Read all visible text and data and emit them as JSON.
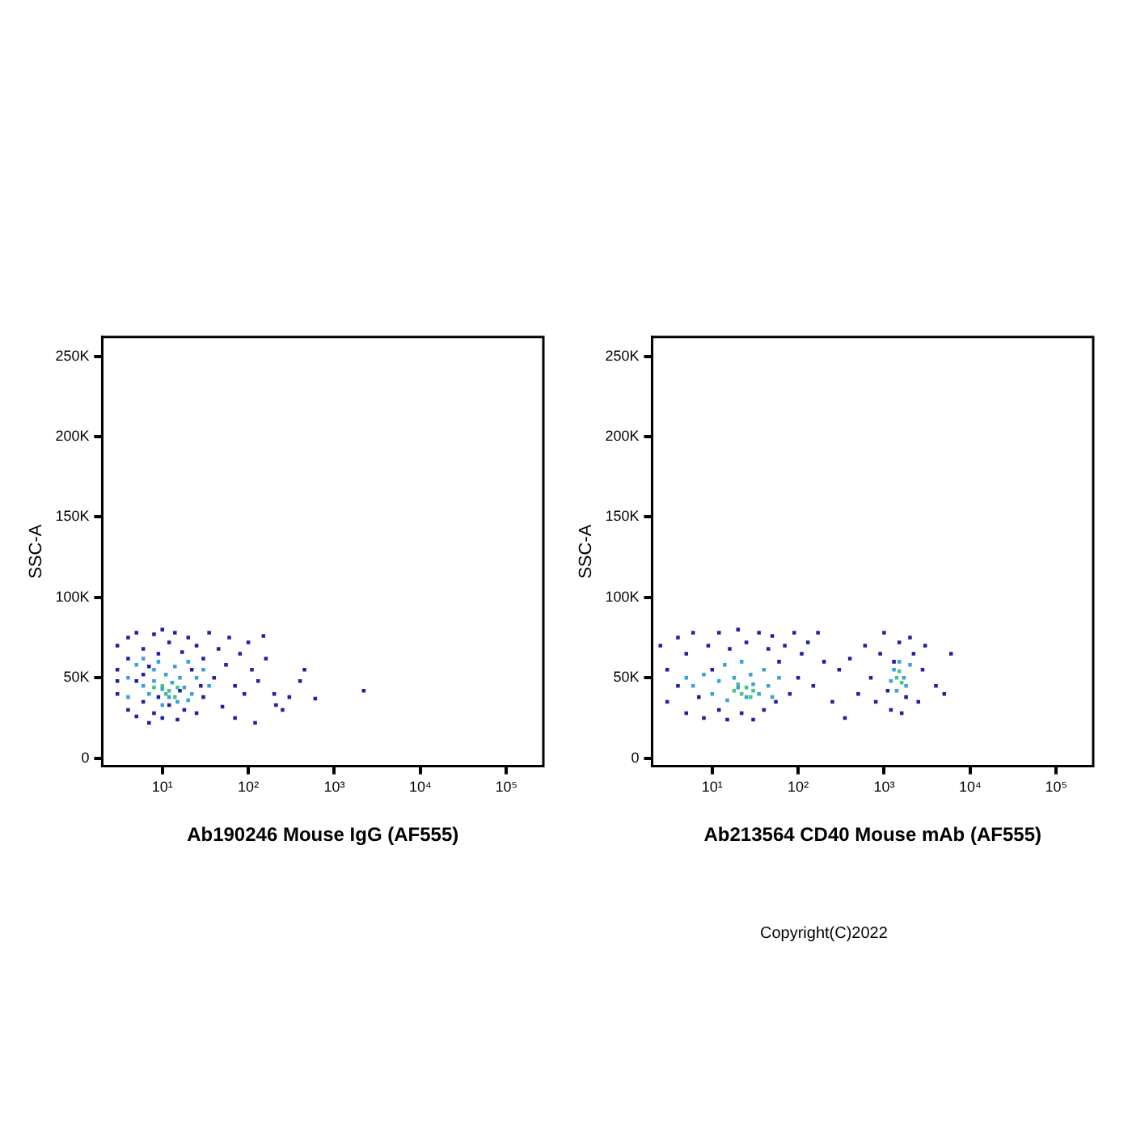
{
  "chart_data": [
    {
      "type": "scatter",
      "xlabel": "Ab190246 Mouse IgG (AF555)",
      "ylabel": "SSC-A",
      "log": "x",
      "grid": false,
      "legend": false,
      "marker": "square",
      "xlim": [
        2,
        270000
      ],
      "xticks": [
        {
          "value": 10,
          "label": "10¹"
        },
        {
          "value": 100,
          "label": "10²"
        },
        {
          "value": 1000,
          "label": "10³"
        },
        {
          "value": 10000,
          "label": "10⁴"
        },
        {
          "value": 100000,
          "label": "10⁵"
        }
      ],
      "ylim": [
        -5000,
        262000
      ],
      "yticks": [
        0,
        {
          "value": 50000,
          "label": "50K"
        },
        {
          "value": 100000,
          "label": "100K"
        },
        {
          "value": 150000,
          "label": "150K"
        },
        {
          "value": 200000,
          "label": "200K"
        },
        {
          "value": 250000,
          "label": "250K"
        }
      ],
      "series": [
        {
          "color": "#2020a0",
          "x": [
            3,
            3,
            3,
            4,
            4,
            4,
            5,
            5,
            5,
            6,
            6,
            7,
            7,
            8,
            8,
            9,
            10,
            10,
            12,
            12,
            14,
            15,
            17,
            18,
            20,
            22,
            25,
            25,
            30,
            30,
            35,
            40,
            45,
            50,
            55,
            60,
            70,
            80,
            90,
            100,
            110,
            130,
            150,
            160,
            200,
            210,
            250,
            300,
            400,
            450,
            600,
            2200,
            3,
            6,
            9,
            16,
            28,
            70,
            120
          ],
          "values": [
            70000,
            55000,
            40000,
            75000,
            30000,
            62000,
            48000,
            26000,
            78000,
            68000,
            35000,
            22000,
            57000,
            77000,
            28000,
            65000,
            80000,
            25000,
            72000,
            33000,
            78000,
            24000,
            66000,
            30000,
            75000,
            55000,
            28000,
            70000,
            62000,
            38000,
            78000,
            50000,
            68000,
            32000,
            58000,
            75000,
            45000,
            65000,
            40000,
            72000,
            55000,
            48000,
            76000,
            62000,
            40000,
            33000,
            30000,
            38000,
            48000,
            55000,
            37000,
            42000,
            48000,
            52000,
            38000,
            42000,
            45000,
            25000,
            22000
          ]
        },
        {
          "color": "#3aa0d8",
          "x": [
            4,
            5,
            6,
            7,
            8,
            8,
            9,
            10,
            11,
            12,
            13,
            14,
            15,
            16,
            18,
            20,
            22,
            25,
            6,
            30,
            35,
            4,
            10,
            20
          ],
          "values": [
            50000,
            58000,
            45000,
            40000,
            55000,
            48000,
            60000,
            43000,
            52000,
            38000,
            47000,
            57000,
            35000,
            50000,
            44000,
            60000,
            40000,
            50000,
            62000,
            55000,
            45000,
            38000,
            33000,
            36000
          ]
        },
        {
          "color": "#40c880",
          "x": [
            10,
            12,
            15,
            11,
            14,
            8
          ],
          "values": [
            45000,
            42000,
            44000,
            40000,
            38000,
            44000
          ]
        }
      ]
    },
    {
      "type": "scatter",
      "xlabel": "Ab213564 CD40 Mouse mAb (AF555)",
      "ylabel": "SSC-A",
      "log": "x",
      "grid": false,
      "legend": false,
      "marker": "square",
      "xlim": [
        2,
        270000
      ],
      "xticks": [
        {
          "value": 10,
          "label": "10¹"
        },
        {
          "value": 100,
          "label": "10²"
        },
        {
          "value": 1000,
          "label": "10³"
        },
        {
          "value": 10000,
          "label": "10⁴"
        },
        {
          "value": 100000,
          "label": "10⁵"
        }
      ],
      "ylim": [
        -5000,
        262000
      ],
      "yticks": [
        0,
        {
          "value": 50000,
          "label": "50K"
        },
        {
          "value": 100000,
          "label": "100K"
        },
        {
          "value": 150000,
          "label": "150K"
        },
        {
          "value": 200000,
          "label": "200K"
        },
        {
          "value": 250000,
          "label": "250K"
        }
      ],
      "annotations": [
        "Copyright(C)2022"
      ],
      "series": [
        {
          "color": "#2020a0",
          "x": [
            2.5,
            3,
            3,
            4,
            4,
            5,
            5,
            6,
            7,
            8,
            9,
            10,
            12,
            12,
            15,
            16,
            20,
            22,
            25,
            30,
            35,
            40,
            45,
            50,
            55,
            60,
            70,
            80,
            90,
            100,
            110,
            130,
            150,
            170,
            200,
            250,
            300,
            350,
            400,
            500,
            600,
            700,
            800,
            900,
            1000,
            1100,
            1200,
            1300,
            1500,
            1600,
            1800,
            2000,
            2200,
            2500,
            2800,
            3000,
            4000,
            5000,
            6000
          ],
          "values": [
            70000,
            55000,
            35000,
            75000,
            45000,
            28000,
            65000,
            78000,
            38000,
            25000,
            70000,
            55000,
            78000,
            30000,
            24000,
            68000,
            80000,
            28000,
            72000,
            24000,
            78000,
            30000,
            68000,
            76000,
            35000,
            60000,
            70000,
            40000,
            78000,
            50000,
            65000,
            72000,
            45000,
            78000,
            60000,
            35000,
            55000,
            25000,
            62000,
            40000,
            70000,
            50000,
            35000,
            65000,
            78000,
            42000,
            30000,
            60000,
            72000,
            28000,
            38000,
            75000,
            65000,
            35000,
            55000,
            70000,
            45000,
            40000,
            65000
          ]
        },
        {
          "color": "#3aa0d8",
          "x": [
            5,
            6,
            8,
            10,
            12,
            14,
            15,
            18,
            20,
            22,
            25,
            28,
            30,
            35,
            40,
            45,
            50,
            60,
            1200,
            1300,
            1400,
            1500,
            1700,
            1800,
            2000
          ],
          "values": [
            50000,
            45000,
            52000,
            40000,
            48000,
            58000,
            36000,
            50000,
            44000,
            60000,
            38000,
            52000,
            46000,
            40000,
            55000,
            45000,
            38000,
            50000,
            48000,
            55000,
            42000,
            60000,
            50000,
            45000,
            58000
          ]
        },
        {
          "color": "#40c880",
          "x": [
            18,
            22,
            25,
            30,
            28,
            20,
            1400,
            1500,
            1600
          ],
          "values": [
            42000,
            40000,
            44000,
            42000,
            38000,
            46000,
            50000,
            54000,
            47000
          ]
        }
      ]
    }
  ]
}
